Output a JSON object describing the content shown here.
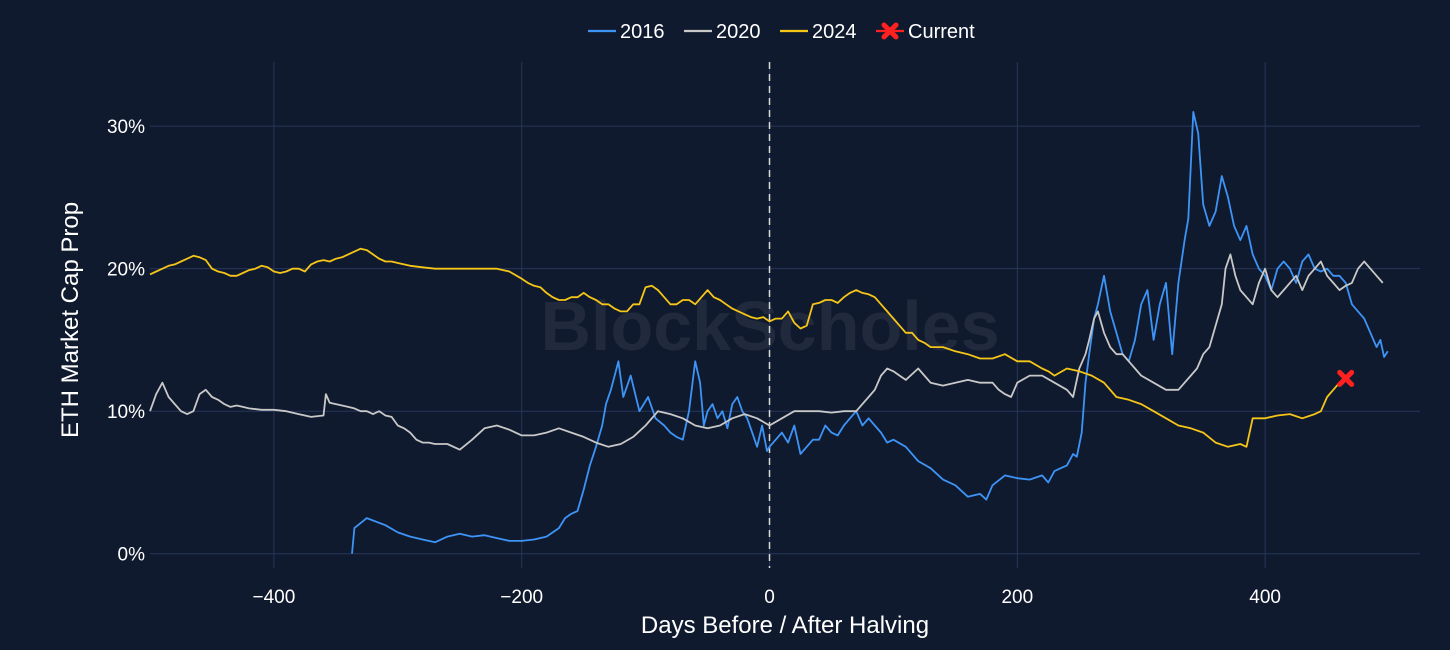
{
  "watermark": "BlockScholes",
  "colors": {
    "background": "#101a2e",
    "grid": "#26365a",
    "halving_line": "#d9d9d9"
  },
  "chart_data": {
    "type": "line",
    "xlabel": "Days Before / After Halving",
    "ylabel": "ETH Market Cap Prop",
    "xlim": [
      -500,
      525
    ],
    "ylim": [
      -0.01,
      0.345
    ],
    "x_ticks": [
      -400,
      -200,
      0,
      200,
      400
    ],
    "x_tick_labels": [
      "−400",
      "−200",
      "0",
      "200",
      "400"
    ],
    "y_ticks": [
      0,
      0.1,
      0.2,
      0.3
    ],
    "y_tick_labels": [
      "0%",
      "10%",
      "20%",
      "30%"
    ],
    "grid": true,
    "legend_position": "top-center",
    "halving_marker": {
      "x": 0,
      "style": "dashed-vertical"
    },
    "series": [
      {
        "name": "2016",
        "color": "#3d94f6",
        "x": [
          -337,
          -335,
          -325,
          -310,
          -300,
          -290,
          -280,
          -270,
          -260,
          -250,
          -240,
          -230,
          -220,
          -210,
          -200,
          -190,
          -180,
          -170,
          -165,
          -160,
          -155,
          -150,
          -145,
          -140,
          -135,
          -132,
          -128,
          -122,
          -118,
          -112,
          -105,
          -98,
          -92,
          -85,
          -80,
          -75,
          -70,
          -65,
          -60,
          -56,
          -53,
          -50,
          -46,
          -42,
          -38,
          -34,
          -30,
          -26,
          -22,
          -18,
          -14,
          -10,
          -6,
          -2,
          0,
          5,
          10,
          15,
          20,
          25,
          30,
          35,
          40,
          45,
          50,
          55,
          60,
          65,
          70,
          75,
          80,
          85,
          90,
          95,
          100,
          110,
          120,
          130,
          140,
          150,
          160,
          170,
          175,
          180,
          190,
          200,
          210,
          220,
          225,
          230,
          235,
          240,
          245,
          248,
          252,
          255,
          258,
          262,
          265,
          270,
          275,
          280,
          285,
          290,
          295,
          300,
          305,
          310,
          315,
          320,
          325,
          330,
          335,
          338,
          342,
          346,
          350,
          355,
          360,
          365,
          370,
          375,
          380,
          385,
          390,
          395,
          400,
          405,
          410,
          415,
          420,
          425,
          430,
          435,
          440,
          445,
          450,
          455,
          460,
          465,
          470,
          475,
          480,
          485,
          490,
          493,
          496,
          499
        ],
        "y": [
          0.0,
          0.018,
          0.025,
          0.02,
          0.015,
          0.012,
          0.01,
          0.008,
          0.012,
          0.014,
          0.012,
          0.013,
          0.011,
          0.009,
          0.009,
          0.01,
          0.012,
          0.018,
          0.025,
          0.028,
          0.03,
          0.045,
          0.062,
          0.075,
          0.09,
          0.105,
          0.115,
          0.135,
          0.11,
          0.125,
          0.1,
          0.11,
          0.095,
          0.09,
          0.085,
          0.082,
          0.08,
          0.1,
          0.135,
          0.12,
          0.09,
          0.1,
          0.105,
          0.095,
          0.1,
          0.088,
          0.105,
          0.11,
          0.1,
          0.095,
          0.085,
          0.075,
          0.09,
          0.072,
          0.075,
          0.08,
          0.085,
          0.078,
          0.09,
          0.07,
          0.075,
          0.08,
          0.08,
          0.09,
          0.085,
          0.083,
          0.09,
          0.095,
          0.1,
          0.09,
          0.095,
          0.09,
          0.085,
          0.078,
          0.08,
          0.075,
          0.065,
          0.06,
          0.052,
          0.048,
          0.04,
          0.042,
          0.038,
          0.048,
          0.055,
          0.053,
          0.052,
          0.055,
          0.05,
          0.058,
          0.06,
          0.062,
          0.07,
          0.068,
          0.085,
          0.12,
          0.14,
          0.165,
          0.175,
          0.195,
          0.17,
          0.155,
          0.14,
          0.135,
          0.15,
          0.175,
          0.185,
          0.15,
          0.175,
          0.19,
          0.14,
          0.19,
          0.22,
          0.235,
          0.31,
          0.295,
          0.245,
          0.23,
          0.24,
          0.265,
          0.25,
          0.23,
          0.22,
          0.23,
          0.21,
          0.2,
          0.195,
          0.185,
          0.2,
          0.205,
          0.2,
          0.19,
          0.205,
          0.21,
          0.2,
          0.198,
          0.2,
          0.195,
          0.195,
          0.19,
          0.175,
          0.17,
          0.165,
          0.155,
          0.145,
          0.15,
          0.138,
          0.142
        ]
      },
      {
        "name": "2020",
        "color": "#c8c8c8",
        "x": [
          -500,
          -495,
          -490,
          -485,
          -480,
          -475,
          -470,
          -465,
          -460,
          -455,
          -450,
          -445,
          -440,
          -435,
          -430,
          -425,
          -420,
          -410,
          -400,
          -390,
          -380,
          -370,
          -360,
          -358,
          -355,
          -350,
          -345,
          -340,
          -335,
          -330,
          -325,
          -320,
          -315,
          -310,
          -305,
          -300,
          -295,
          -290,
          -285,
          -280,
          -275,
          -270,
          -260,
          -250,
          -240,
          -230,
          -220,
          -210,
          -200,
          -190,
          -180,
          -170,
          -160,
          -150,
          -140,
          -130,
          -120,
          -110,
          -100,
          -90,
          -80,
          -70,
          -60,
          -50,
          -40,
          -30,
          -20,
          -10,
          0,
          10,
          20,
          30,
          40,
          50,
          60,
          70,
          80,
          85,
          90,
          95,
          100,
          105,
          110,
          120,
          130,
          140,
          150,
          160,
          170,
          180,
          185,
          190,
          195,
          200,
          210,
          220,
          230,
          240,
          245,
          250,
          255,
          258,
          262,
          265,
          270,
          275,
          280,
          285,
          290,
          295,
          300,
          310,
          320,
          330,
          340,
          345,
          350,
          355,
          360,
          365,
          368,
          372,
          376,
          380,
          385,
          390,
          395,
          400,
          405,
          410,
          415,
          420,
          425,
          430,
          435,
          440,
          445,
          450,
          455,
          460,
          465,
          470,
          475,
          480,
          485,
          490,
          495
        ],
        "y": [
          0.1,
          0.112,
          0.12,
          0.11,
          0.105,
          0.1,
          0.098,
          0.1,
          0.112,
          0.115,
          0.11,
          0.108,
          0.105,
          0.103,
          0.104,
          0.103,
          0.102,
          0.101,
          0.101,
          0.1,
          0.098,
          0.096,
          0.097,
          0.112,
          0.106,
          0.105,
          0.104,
          0.103,
          0.102,
          0.1,
          0.1,
          0.098,
          0.1,
          0.097,
          0.096,
          0.09,
          0.088,
          0.085,
          0.08,
          0.078,
          0.078,
          0.077,
          0.077,
          0.073,
          0.08,
          0.088,
          0.09,
          0.087,
          0.083,
          0.083,
          0.085,
          0.088,
          0.085,
          0.082,
          0.078,
          0.075,
          0.077,
          0.082,
          0.09,
          0.1,
          0.098,
          0.095,
          0.09,
          0.088,
          0.09,
          0.095,
          0.098,
          0.095,
          0.09,
          0.095,
          0.1,
          0.1,
          0.1,
          0.099,
          0.1,
          0.1,
          0.11,
          0.115,
          0.125,
          0.13,
          0.128,
          0.125,
          0.122,
          0.13,
          0.12,
          0.118,
          0.12,
          0.122,
          0.12,
          0.12,
          0.115,
          0.112,
          0.11,
          0.12,
          0.125,
          0.125,
          0.12,
          0.115,
          0.11,
          0.13,
          0.14,
          0.15,
          0.165,
          0.17,
          0.155,
          0.145,
          0.14,
          0.14,
          0.135,
          0.13,
          0.125,
          0.12,
          0.115,
          0.115,
          0.125,
          0.13,
          0.14,
          0.145,
          0.16,
          0.175,
          0.2,
          0.21,
          0.195,
          0.185,
          0.18,
          0.175,
          0.19,
          0.2,
          0.185,
          0.18,
          0.185,
          0.19,
          0.195,
          0.185,
          0.195,
          0.2,
          0.205,
          0.195,
          0.19,
          0.185,
          0.188,
          0.19,
          0.2,
          0.205,
          0.2,
          0.195,
          0.19
        ]
      },
      {
        "name": "2024",
        "color": "#f5c518",
        "x": [
          -500,
          -495,
          -490,
          -485,
          -480,
          -475,
          -470,
          -465,
          -460,
          -455,
          -450,
          -445,
          -440,
          -435,
          -430,
          -425,
          -420,
          -415,
          -410,
          -405,
          -400,
          -395,
          -390,
          -385,
          -380,
          -375,
          -370,
          -365,
          -360,
          -355,
          -350,
          -345,
          -340,
          -335,
          -330,
          -325,
          -320,
          -315,
          -310,
          -305,
          -300,
          -295,
          -290,
          -280,
          -270,
          -260,
          -250,
          -240,
          -230,
          -220,
          -210,
          -200,
          -195,
          -190,
          -185,
          -180,
          -175,
          -170,
          -165,
          -160,
          -155,
          -150,
          -145,
          -140,
          -135,
          -130,
          -125,
          -120,
          -115,
          -110,
          -105,
          -100,
          -95,
          -90,
          -85,
          -80,
          -75,
          -70,
          -65,
          -60,
          -55,
          -50,
          -45,
          -40,
          -35,
          -30,
          -25,
          -20,
          -15,
          -10,
          -5,
          0,
          5,
          10,
          15,
          20,
          25,
          30,
          35,
          40,
          45,
          50,
          55,
          60,
          65,
          70,
          75,
          80,
          85,
          90,
          95,
          100,
          105,
          110,
          115,
          120,
          125,
          130,
          140,
          150,
          160,
          170,
          180,
          190,
          200,
          210,
          220,
          225,
          230,
          240,
          250,
          260,
          270,
          280,
          290,
          300,
          310,
          320,
          330,
          340,
          350,
          360,
          370,
          380,
          385,
          390,
          400,
          410,
          420,
          430,
          440,
          445,
          450,
          455,
          460,
          465
        ],
        "y": [
          0.196,
          0.198,
          0.2,
          0.202,
          0.203,
          0.205,
          0.207,
          0.209,
          0.208,
          0.206,
          0.2,
          0.198,
          0.197,
          0.195,
          0.195,
          0.197,
          0.199,
          0.2,
          0.202,
          0.201,
          0.198,
          0.197,
          0.198,
          0.2,
          0.2,
          0.198,
          0.203,
          0.205,
          0.206,
          0.205,
          0.207,
          0.208,
          0.21,
          0.212,
          0.214,
          0.213,
          0.21,
          0.207,
          0.205,
          0.205,
          0.204,
          0.203,
          0.202,
          0.201,
          0.2,
          0.2,
          0.2,
          0.2,
          0.2,
          0.2,
          0.198,
          0.193,
          0.19,
          0.188,
          0.187,
          0.183,
          0.18,
          0.178,
          0.178,
          0.18,
          0.18,
          0.183,
          0.18,
          0.178,
          0.175,
          0.175,
          0.172,
          0.17,
          0.17,
          0.175,
          0.175,
          0.187,
          0.188,
          0.185,
          0.18,
          0.175,
          0.175,
          0.178,
          0.178,
          0.175,
          0.18,
          0.185,
          0.18,
          0.178,
          0.175,
          0.172,
          0.17,
          0.168,
          0.166,
          0.165,
          0.166,
          0.163,
          0.165,
          0.165,
          0.17,
          0.162,
          0.158,
          0.16,
          0.175,
          0.176,
          0.178,
          0.178,
          0.176,
          0.18,
          0.183,
          0.185,
          0.183,
          0.182,
          0.18,
          0.175,
          0.17,
          0.165,
          0.16,
          0.155,
          0.155,
          0.15,
          0.148,
          0.145,
          0.145,
          0.142,
          0.14,
          0.137,
          0.137,
          0.14,
          0.135,
          0.135,
          0.13,
          0.128,
          0.125,
          0.13,
          0.128,
          0.125,
          0.12,
          0.11,
          0.108,
          0.105,
          0.1,
          0.095,
          0.09,
          0.088,
          0.085,
          0.078,
          0.075,
          0.077,
          0.075,
          0.095,
          0.095,
          0.097,
          0.098,
          0.095,
          0.098,
          0.1,
          0.11,
          0.115,
          0.12,
          0.123
        ]
      }
    ],
    "current_marker": {
      "name": "Current",
      "x": 465,
      "y": 0.123,
      "color": "#ff2020"
    }
  }
}
